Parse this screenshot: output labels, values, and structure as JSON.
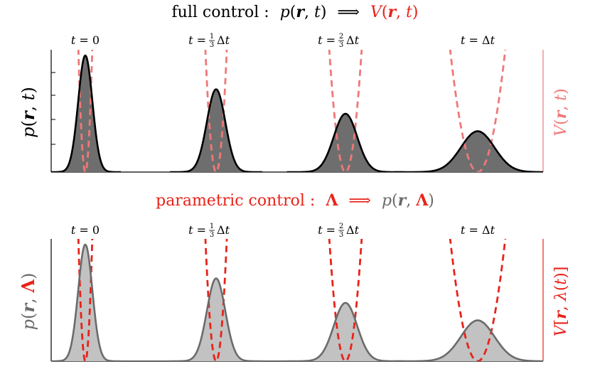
{
  "colors": {
    "black": "#000000",
    "red": "#e8231a",
    "light_red": "#f07878",
    "dark_gray_fill": "#6e6e6e",
    "light_gray_fill": "#c2c2c2",
    "gray_curve": "#6b6b6b"
  },
  "top_panel": {
    "heading": {
      "prefix": "full control :",
      "expression": "p(r, t)",
      "arrow": "⟹",
      "result": "V(r, t)"
    },
    "ylabel_left": "p(r, t)",
    "ylabel_right": "V(r, t)",
    "time_labels": [
      "t = 0",
      "t = 1/3 Δt",
      "t = 2/3 Δt",
      "t = Δt"
    ]
  },
  "bottom_panel": {
    "heading": {
      "prefix": "parametric control :",
      "expression": "Λ",
      "arrow": "⟹",
      "result": "p(r, Λ)"
    },
    "ylabel_left": "p(r, Λ)",
    "ylabel_right": "V[r, λ(t)]",
    "time_labels": [
      "t = 0",
      "t = 1/3 Δt",
      "t = 2/3 Δt",
      "t = Δt"
    ]
  },
  "chart_data": [
    {
      "type": "area",
      "panel": "full control",
      "series": [
        {
          "role": "p(r, t)",
          "snapshots": [
            {
              "t": "0",
              "relative_height": 1.0,
              "relative_width": 1.0
            },
            {
              "t": "1/3 Δt",
              "relative_height": 0.71,
              "relative_width": 1.3
            },
            {
              "t": "2/3 Δt",
              "relative_height": 0.5,
              "relative_width": 1.65
            },
            {
              "t": "Δt",
              "relative_height": 0.35,
              "relative_width": 2.35
            }
          ]
        },
        {
          "role": "V(r, t)",
          "style": "dashed",
          "shape": "harmonic"
        }
      ]
    },
    {
      "type": "area",
      "panel": "parametric control",
      "series": [
        {
          "role": "p(r, Λ)",
          "snapshots": [
            {
              "t": "0",
              "relative_height": 1.0,
              "relative_width": 1.0
            },
            {
              "t": "1/3 Δt",
              "relative_height": 0.71,
              "relative_width": 1.3
            },
            {
              "t": "2/3 Δt",
              "relative_height": 0.5,
              "relative_width": 1.65
            },
            {
              "t": "Δt",
              "relative_height": 0.35,
              "relative_width": 2.35
            }
          ]
        },
        {
          "role": "V[r, λ(t)]",
          "style": "dashed",
          "shape": "harmonic"
        }
      ]
    }
  ]
}
